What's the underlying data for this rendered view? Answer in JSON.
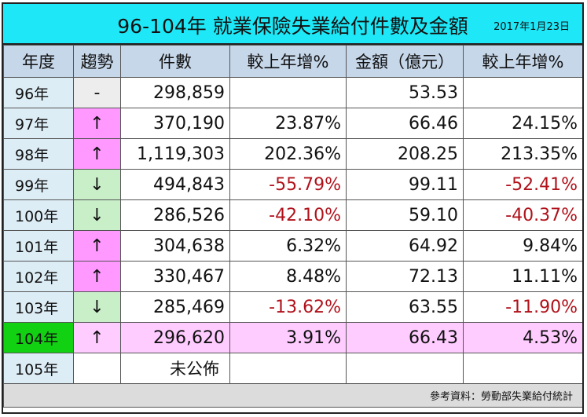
{
  "title": "96-104年 就業保險失業給付件數及金額",
  "date": "2017年1月23日",
  "headers": [
    "年度",
    "趨勢",
    "件數",
    "較上年增%",
    "金額（億元）",
    "較上年增%"
  ],
  "colors": {
    "title_bg": "#1ee8f7",
    "header_bg": "#c7d7ea",
    "year_bg": "#ddedf6",
    "trend_up_bg": "#ff99ff",
    "trend_down_bg": "#c9efc9",
    "highlight_row_bg": "#ffccff",
    "highlight_year_bg": "#12d112",
    "negative_text": "#b0121b",
    "footer_bg": "#dcdcdc"
  },
  "rows": [
    {
      "year": "96年",
      "trend": "-",
      "trend_type": "flat",
      "cases": "298,859",
      "cases_growth": "",
      "amount": "53.53",
      "amount_growth": ""
    },
    {
      "year": "97年",
      "trend": "↑",
      "trend_type": "up",
      "cases": "370,190",
      "cases_growth": "23.87%",
      "amount": "66.46",
      "amount_growth": "24.15%"
    },
    {
      "year": "98年",
      "trend": "↑",
      "trend_type": "up",
      "cases": "1,119,303",
      "cases_growth": "202.36%",
      "amount": "208.25",
      "amount_growth": "213.35%"
    },
    {
      "year": "99年",
      "trend": "↓",
      "trend_type": "down",
      "cases": "494,843",
      "cases_growth": "-55.79%",
      "amount": "99.11",
      "amount_growth": "-52.41%"
    },
    {
      "year": "100年",
      "trend": "↓",
      "trend_type": "down",
      "cases": "286,526",
      "cases_growth": "-42.10%",
      "amount": "59.10",
      "amount_growth": "-40.37%"
    },
    {
      "year": "101年",
      "trend": "↑",
      "trend_type": "up",
      "cases": "304,638",
      "cases_growth": "6.32%",
      "amount": "64.92",
      "amount_growth": "9.84%"
    },
    {
      "year": "102年",
      "trend": "↑",
      "trend_type": "up",
      "cases": "330,467",
      "cases_growth": "8.48%",
      "amount": "72.13",
      "amount_growth": "11.11%"
    },
    {
      "year": "103年",
      "trend": "↓",
      "trend_type": "down",
      "cases": "285,469",
      "cases_growth": "-13.62%",
      "amount": "63.55",
      "amount_growth": "-11.90%"
    },
    {
      "year": "104年",
      "trend": "↑",
      "trend_type": "up",
      "cases": "296,620",
      "cases_growth": "3.91%",
      "amount": "66.43",
      "amount_growth": "4.53%",
      "highlight": true
    }
  ],
  "last_row": {
    "year": "105年",
    "note": "未公佈"
  },
  "footer": "參考資料：勞動部失業給付統計"
}
